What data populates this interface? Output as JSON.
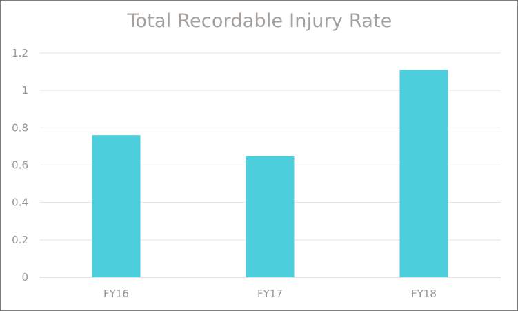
{
  "chart_data": {
    "type": "bar",
    "title": "Total Recordable Injury Rate",
    "categories": [
      "FY16",
      "FY17",
      "FY18"
    ],
    "values": [
      0.76,
      0.65,
      1.11
    ],
    "ylim": [
      0,
      1.2
    ],
    "yticks": [
      "0",
      "0.2",
      "0.4",
      "0.6",
      "0.8",
      "1",
      "1.2"
    ],
    "ytick_values": [
      0,
      0.2,
      0.4,
      0.6,
      0.8,
      1.0,
      1.2
    ],
    "xlabel": "",
    "ylabel": "",
    "grid": true,
    "legend": "none",
    "bar_color": "#4dcedd",
    "grid_color": "#e3e3e3",
    "text_color": "#a6a09c"
  }
}
